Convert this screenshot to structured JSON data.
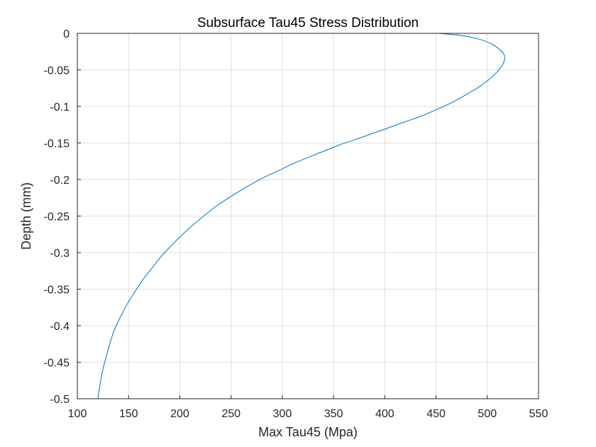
{
  "chart_data": {
    "type": "line",
    "title": "Subsurface Tau45 Stress Distribution",
    "xlabel": "Max Tau45 (Mpa)",
    "ylabel": "Depth (mm)",
    "xlim": [
      100,
      550
    ],
    "ylim": [
      -0.5,
      0
    ],
    "xticks": [
      100,
      150,
      200,
      250,
      300,
      350,
      400,
      450,
      500,
      550
    ],
    "xtick_labels": [
      "100",
      "150",
      "200",
      "250",
      "300",
      "350",
      "400",
      "450",
      "500",
      "550"
    ],
    "yticks": [
      0,
      -0.05,
      -0.1,
      -0.15,
      -0.2,
      -0.25,
      -0.3,
      -0.35,
      -0.4,
      -0.45,
      -0.5
    ],
    "ytick_labels": [
      "0",
      "-0.05",
      "-0.1",
      "-0.15",
      "-0.2",
      "-0.25",
      "-0.3",
      "-0.35",
      "-0.4",
      "-0.45",
      "-0.5"
    ],
    "grid": true,
    "line_color": "#0072bd",
    "series": [
      {
        "x": [
          452,
          475,
          492,
          505,
          512,
          516,
          517,
          516,
          513,
          508,
          500,
          490,
          478,
          465,
          451,
          436,
          420,
          404,
          388,
          372,
          355,
          339,
          323,
          308,
          293,
          278,
          264,
          250,
          237,
          225,
          213,
          202,
          192,
          182,
          173,
          164,
          156,
          148,
          141,
          135,
          129,
          124,
          120
        ],
        "y": [
          0,
          -0.003,
          -0.008,
          -0.015,
          -0.022,
          -0.028,
          -0.033,
          -0.04,
          -0.047,
          -0.055,
          -0.065,
          -0.075,
          -0.085,
          -0.095,
          -0.104,
          -0.113,
          -0.121,
          -0.129,
          -0.137,
          -0.145,
          -0.153,
          -0.162,
          -0.171,
          -0.18,
          -0.19,
          -0.2,
          -0.211,
          -0.223,
          -0.235,
          -0.248,
          -0.262,
          -0.276,
          -0.29,
          -0.305,
          -0.321,
          -0.337,
          -0.354,
          -0.372,
          -0.391,
          -0.41,
          -0.438,
          -0.466,
          -0.5
        ]
      }
    ]
  }
}
